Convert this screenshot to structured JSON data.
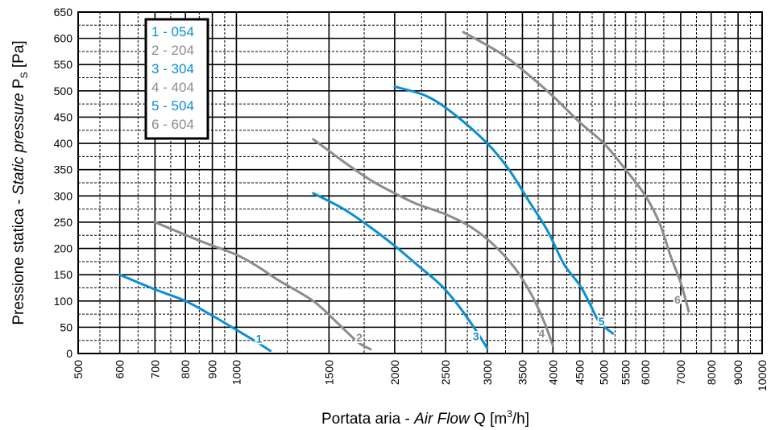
{
  "chart_data": {
    "type": "line",
    "x_scale": "log",
    "xlim": [
      500,
      10000
    ],
    "ylim": [
      0,
      650
    ],
    "x_ticks": [
      500,
      600,
      700,
      800,
      900,
      1000,
      1500,
      2000,
      2500,
      3000,
      3500,
      4000,
      4500,
      5000,
      5500,
      6000,
      7000,
      8000,
      9000,
      10000
    ],
    "y_ticks": [
      0,
      50,
      100,
      150,
      200,
      250,
      300,
      350,
      400,
      450,
      500,
      550,
      600,
      650
    ],
    "xlabel_prefix": "Portata aria - ",
    "xlabel_italic": "Air Flow",
    "xlabel_suffix_q": " Q [m",
    "xlabel_exp": "3",
    "xlabel_end": "/h]",
    "ylabel_prefix": "Pressione statica - ",
    "ylabel_italic": "Static pressure",
    "ylabel_p": " P",
    "ylabel_sub": "S",
    "ylabel_end": " [Pa]",
    "grid": true,
    "legend_position": "top-left",
    "colors": {
      "blue": "#0a8fd1",
      "gray": "#8c8c8c"
    },
    "series": [
      {
        "name": "1 - 054",
        "label": "1",
        "color": "blue",
        "points": [
          [
            600,
            150
          ],
          [
            700,
            122
          ],
          [
            800,
            100
          ],
          [
            900,
            72
          ],
          [
            1000,
            45
          ],
          [
            1100,
            20
          ],
          [
            1160,
            5
          ]
        ]
      },
      {
        "name": "2 - 204",
        "label": "2",
        "color": "gray",
        "points": [
          [
            700,
            250
          ],
          [
            850,
            215
          ],
          [
            1000,
            188
          ],
          [
            1100,
            165
          ],
          [
            1200,
            140
          ],
          [
            1400,
            100
          ],
          [
            1550,
            60
          ],
          [
            1700,
            22
          ],
          [
            1800,
            8
          ]
        ]
      },
      {
        "name": "3 - 304",
        "label": "3",
        "color": "blue",
        "points": [
          [
            1400,
            305
          ],
          [
            1600,
            275
          ],
          [
            1800,
            240
          ],
          [
            2000,
            205
          ],
          [
            2200,
            170
          ],
          [
            2450,
            130
          ],
          [
            2650,
            90
          ],
          [
            2850,
            45
          ],
          [
            3000,
            10
          ]
        ]
      },
      {
        "name": "4 - 404",
        "label": "4",
        "color": "gray",
        "points": [
          [
            1400,
            408
          ],
          [
            1600,
            365
          ],
          [
            1800,
            330
          ],
          [
            2000,
            305
          ],
          [
            2200,
            285
          ],
          [
            2500,
            265
          ],
          [
            2800,
            240
          ],
          [
            3100,
            205
          ],
          [
            3400,
            160
          ],
          [
            3650,
            110
          ],
          [
            3850,
            60
          ],
          [
            4000,
            15
          ]
        ]
      },
      {
        "name": "5 - 504",
        "label": "5",
        "color": "blue",
        "points": [
          [
            2000,
            508
          ],
          [
            2300,
            490
          ],
          [
            2600,
            455
          ],
          [
            3000,
            400
          ],
          [
            3300,
            350
          ],
          [
            3600,
            290
          ],
          [
            3900,
            235
          ],
          [
            4200,
            170
          ],
          [
            4500,
            130
          ],
          [
            4700,
            95
          ],
          [
            4900,
            60
          ],
          [
            5200,
            38
          ]
        ]
      },
      {
        "name": "6 - 604",
        "label": "6",
        "color": "gray",
        "points": [
          [
            2700,
            612
          ],
          [
            3200,
            570
          ],
          [
            3600,
            530
          ],
          [
            4000,
            490
          ],
          [
            4500,
            440
          ],
          [
            5000,
            400
          ],
          [
            5500,
            350
          ],
          [
            6000,
            300
          ],
          [
            6400,
            245
          ],
          [
            6700,
            185
          ],
          [
            7000,
            135
          ],
          [
            7250,
            80
          ]
        ]
      }
    ]
  }
}
